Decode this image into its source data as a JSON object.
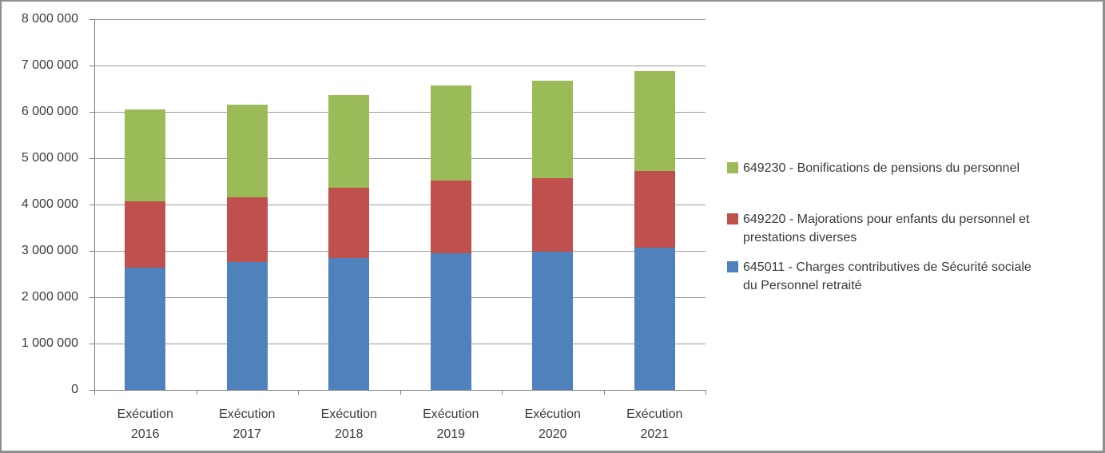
{
  "chart_data": {
    "type": "bar",
    "stacked": true,
    "grid": true,
    "legend_position": "right",
    "categories": [
      "Exécution 2016",
      "Exécution 2017",
      "Exécution 2018",
      "Exécution 2019",
      "Exécution 2020",
      "Exécution 2021"
    ],
    "series": [
      {
        "name": "645011 - Charges contributives de Sécurité sociale du Personnel retraité",
        "color": "#4F81BD",
        "values": [
          2640000,
          2760000,
          2850000,
          2940000,
          2990000,
          3070000
        ]
      },
      {
        "name": "649220 - Majorations pour enfants du personnel et prestations diverses",
        "color": "#C0504D",
        "values": [
          1430000,
          1400000,
          1510000,
          1580000,
          1580000,
          1660000
        ]
      },
      {
        "name": "649230 - Bonifications de pensions du personnel",
        "color": "#9BBB59",
        "values": [
          1980000,
          2000000,
          2010000,
          2050000,
          2100000,
          2150000
        ]
      }
    ],
    "totals": [
      6050000,
      6160000,
      6370000,
      6570000,
      6670000,
      6880000
    ],
    "ylim": [
      0,
      8000000
    ],
    "y_tick_step": 1000000,
    "y_tick_labels": [
      "0",
      "1 000 000",
      "2 000 000",
      "3 000 000",
      "4 000 000",
      "5 000 000",
      "6 000 000",
      "7 000 000",
      "8 000 000"
    ],
    "xlabel": "",
    "ylabel": "",
    "title": "",
    "legend": [
      {
        "series_index": 2,
        "lines": [
          "649230 - Bonifications de pensions du personnel"
        ]
      },
      {
        "series_index": 1,
        "lines": [
          "649220 - Majorations pour enfants du personnel et",
          "prestations diverses"
        ]
      },
      {
        "series_index": 0,
        "lines": [
          "645011 - Charges contributives de Sécurité sociale",
          "du Personnel retraité"
        ]
      }
    ]
  },
  "colors": {
    "axis": "#7f7f7f",
    "gridline": "#9a9a9a",
    "text": "#3a3a3a",
    "frame_border": "#8f8f8f",
    "background": "#ffffff"
  }
}
